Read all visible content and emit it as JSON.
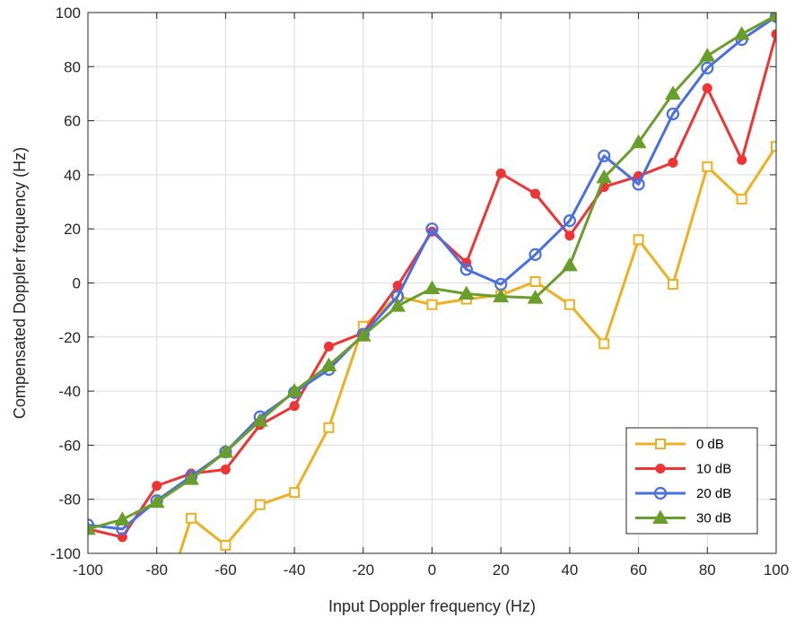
{
  "chart_data": {
    "type": "line",
    "title": "",
    "xlabel": "Input Doppler frequency (Hz)",
    "ylabel": "Compensated Doppler frequency (Hz)",
    "xlim": [
      -100,
      100
    ],
    "ylim": [
      -100,
      100
    ],
    "xticks": [
      -100,
      -80,
      -60,
      -40,
      -20,
      0,
      20,
      40,
      60,
      80,
      100
    ],
    "yticks": [
      -100,
      -80,
      -60,
      -40,
      -20,
      0,
      20,
      40,
      60,
      80,
      100
    ],
    "grid": true,
    "legend_position": "bottom-right",
    "series": [
      {
        "name": "0 dB",
        "color": "#EDB120",
        "marker": "square",
        "x": [
          -70,
          -60,
          -50,
          -40,
          -30,
          -20,
          -10,
          0,
          10,
          20,
          30,
          40,
          50,
          60,
          70,
          80,
          90,
          100
        ],
        "y": [
          -87,
          -97,
          -82,
          -77.5,
          -53.5,
          -16,
          -5,
          -8,
          -6,
          -4.5,
          0.5,
          -8,
          -22.5,
          16,
          -0.5,
          43,
          31,
          50.5
        ],
        "lead_in_from_below": {
          "x0": -75,
          "x1": -70
        }
      },
      {
        "name": "10 dB",
        "color": "#F03333",
        "marker": "circle-filled",
        "x": [
          -100,
          -90,
          -80,
          -70,
          -60,
          -50,
          -40,
          -30,
          -20,
          -10,
          0,
          10,
          20,
          30,
          40,
          50,
          60,
          70,
          80,
          90,
          100
        ],
        "y": [
          -91,
          -94,
          -75,
          -70.5,
          -69,
          -52.5,
          -45.5,
          -23.5,
          -18.5,
          -1,
          19,
          7.5,
          40.5,
          33,
          17.5,
          35.5,
          39.5,
          44.5,
          72,
          45.5,
          92
        ]
      },
      {
        "name": "20 dB",
        "color": "#4A6FE3",
        "marker": "circle-open",
        "x": [
          -100,
          -90,
          -80,
          -70,
          -60,
          -50,
          -40,
          -30,
          -20,
          -10,
          0,
          10,
          20,
          30,
          40,
          50,
          60,
          70,
          80,
          90,
          100
        ],
        "y": [
          -89.5,
          -91,
          -80.5,
          -71.5,
          -62.5,
          -49.5,
          -40.5,
          -32,
          -19,
          -5,
          20,
          5,
          -0.5,
          10.5,
          23,
          47,
          36.5,
          62.5,
          79.5,
          90,
          98.5
        ]
      },
      {
        "name": "30 dB",
        "color": "#6A9E2A",
        "marker": "triangle",
        "x": [
          -100,
          -90,
          -80,
          -70,
          -60,
          -50,
          -40,
          -30,
          -20,
          -10,
          0,
          10,
          20,
          30,
          40,
          50,
          60,
          70,
          80,
          90,
          100
        ],
        "y": [
          -91,
          -87.5,
          -81,
          -72.5,
          -62.5,
          -51,
          -40,
          -30.5,
          -19.5,
          -8.5,
          -2,
          -4,
          -5,
          -5.5,
          6.5,
          39,
          52,
          70,
          84,
          92,
          99
        ]
      }
    ]
  }
}
